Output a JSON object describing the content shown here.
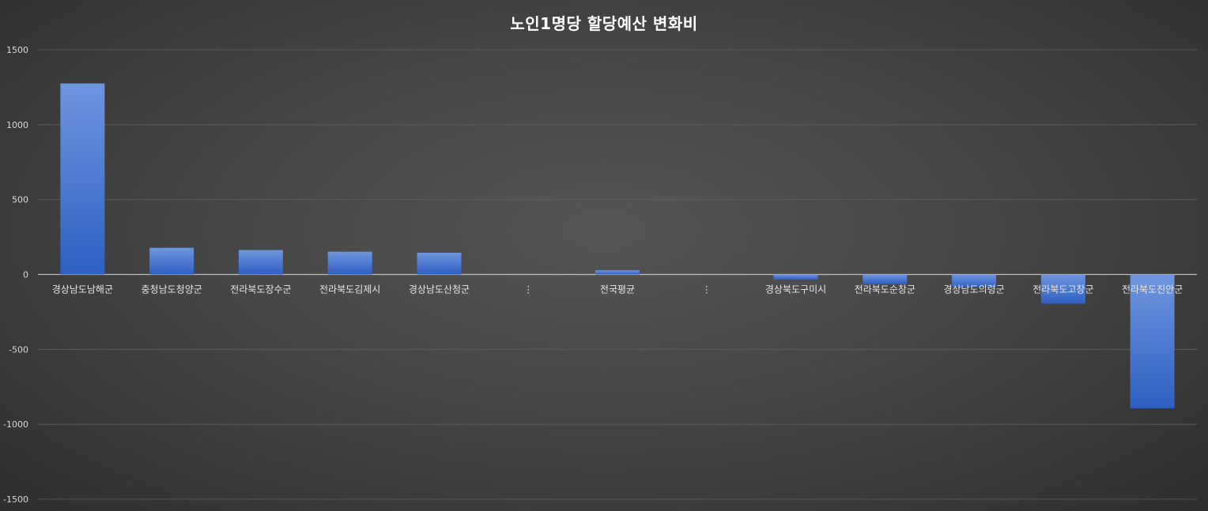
{
  "chart_data": {
    "type": "bar",
    "title": "노인1명당 할당예산 변화비",
    "categories": [
      "경상남도남해군",
      "충청남도청양군",
      "전라북도장수군",
      "전라북도김제시",
      "경상남도산청군",
      "⋮",
      "전국평균",
      "⋮",
      "경상북도구미시",
      "전라북도순창군",
      "경상남도의령군",
      "전라북도고창군",
      "전라북도진안군"
    ],
    "values": [
      1275,
      178,
      163,
      152,
      145,
      null,
      28,
      null,
      -35,
      -65,
      -85,
      -195,
      -893
    ],
    "ylim": [
      -1500,
      1500
    ],
    "yticks": [
      -1500,
      -1000,
      -500,
      0,
      500,
      1000,
      1500
    ],
    "ytick_labels": [
      "-1500",
      "-1000",
      "-500",
      "0",
      "500",
      "1000",
      "1500"
    ],
    "grid": true,
    "legend": "none",
    "bar_color": "#3e6fcf"
  }
}
